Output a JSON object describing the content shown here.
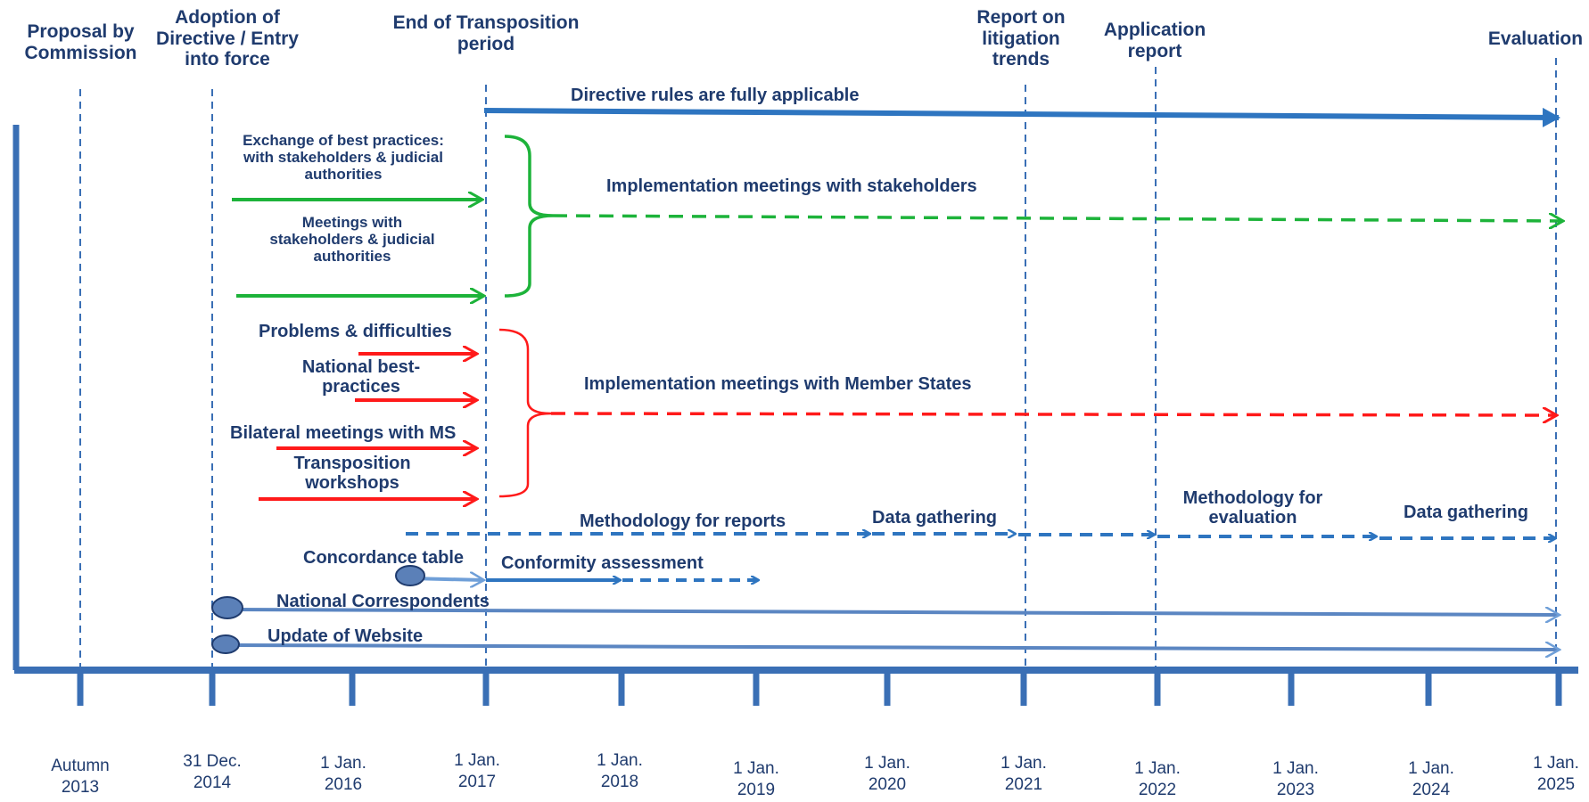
{
  "milestones": {
    "proposal": "Proposal by Commission",
    "adoption": "Adoption of Directive / Entry into force",
    "end_transposition": "End of Transposition period",
    "report_litigation": "Report on litigation trends",
    "application_report": "Application report",
    "evaluation": "Evaluation"
  },
  "phases": {
    "fully_applicable": "Directive rules are fully applicable",
    "impl_stakeholders": "Implementation meetings with stakeholders",
    "impl_member_states": "Implementation meetings with Member States"
  },
  "stakeholder_activities": {
    "exchange": "Exchange of best practices: with stakeholders & judicial authorities",
    "meetings": "Meetings with stakeholders & judicial authorities"
  },
  "member_state_activities": {
    "problems": "Problems & difficulties",
    "national": "National best-practices",
    "bilateral": "Bilateral meetings with MS",
    "workshops": "Transposition workshops"
  },
  "reporting": {
    "methodology_reports": "Methodology for reports",
    "data_gathering_1": "Data gathering",
    "methodology_evaluation": "Methodology for evaluation",
    "data_gathering_2": "Data gathering"
  },
  "conformity": {
    "concordance": "Concordance table",
    "assessment": "Conformity assessment"
  },
  "continuous": {
    "correspondents": "National Correspondents",
    "website": "Update of Website"
  },
  "axis_dates": [
    {
      "line1": "Autumn",
      "line2": "2013"
    },
    {
      "line1": "31 Dec.",
      "line2": "2014"
    },
    {
      "line1": "1 Jan.",
      "line2": "2016"
    },
    {
      "line1": "1 Jan.",
      "line2": "2017"
    },
    {
      "line1": "1 Jan.",
      "line2": "2018"
    },
    {
      "line1": "1 Jan.",
      "line2": "2019"
    },
    {
      "line1": "1 Jan.",
      "line2": "2020"
    },
    {
      "line1": "1 Jan.",
      "line2": "2021"
    },
    {
      "line1": "1 Jan.",
      "line2": "2022"
    },
    {
      "line1": "1 Jan.",
      "line2": "2023"
    },
    {
      "line1": "1 Jan.",
      "line2": "2024"
    },
    {
      "line1": "1 Jan.",
      "line2": "2025"
    }
  ],
  "colors": {
    "navy": "#1f3b6e",
    "blue": "#2e75c0",
    "green": "#1db33a",
    "red": "#ff1a1a",
    "axis": "#3a6fb5"
  }
}
